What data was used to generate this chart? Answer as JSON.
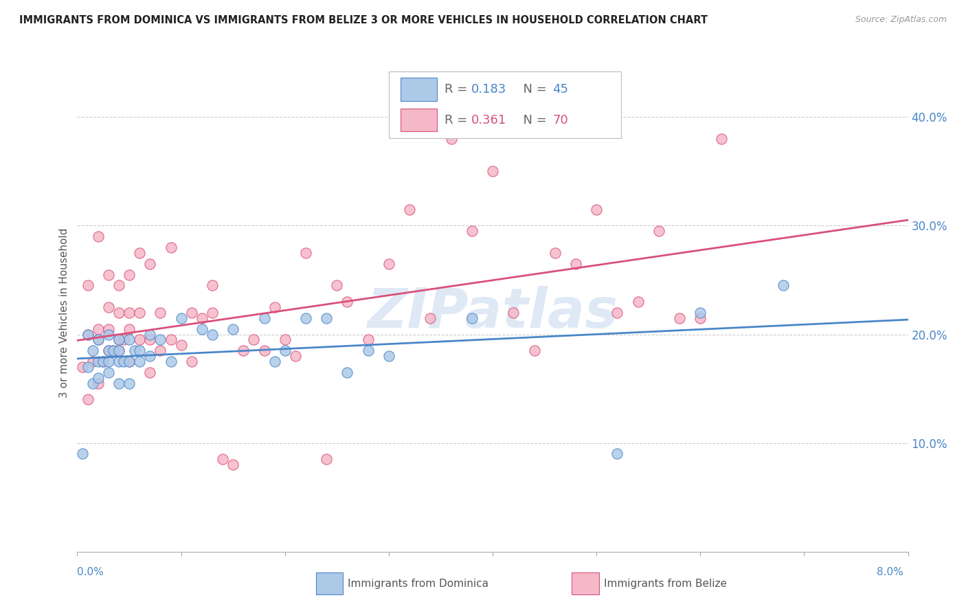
{
  "title": "IMMIGRANTS FROM DOMINICA VS IMMIGRANTS FROM BELIZE 3 OR MORE VEHICLES IN HOUSEHOLD CORRELATION CHART",
  "source": "Source: ZipAtlas.com",
  "ylabel": "3 or more Vehicles in Household",
  "ylabel_right_ticks": [
    "10.0%",
    "20.0%",
    "30.0%",
    "40.0%"
  ],
  "ylabel_right_vals": [
    0.1,
    0.2,
    0.3,
    0.4
  ],
  "x_min": 0.0,
  "x_max": 0.08,
  "y_min": 0.0,
  "y_max": 0.44,
  "dominica_color": "#adc9e8",
  "belize_color": "#f5b8c8",
  "dominica_line_color": "#4a86c8",
  "belize_line_color": "#d9507a",
  "watermark": "ZIPatlas",
  "dominica_x": [
    0.0005,
    0.001,
    0.001,
    0.0015,
    0.0015,
    0.002,
    0.002,
    0.002,
    0.0025,
    0.003,
    0.003,
    0.003,
    0.003,
    0.0035,
    0.004,
    0.004,
    0.004,
    0.004,
    0.0045,
    0.005,
    0.005,
    0.005,
    0.0055,
    0.006,
    0.006,
    0.007,
    0.007,
    0.008,
    0.009,
    0.01,
    0.012,
    0.013,
    0.015,
    0.018,
    0.019,
    0.02,
    0.022,
    0.024,
    0.026,
    0.028,
    0.03,
    0.038,
    0.052,
    0.06,
    0.068
  ],
  "dominica_y": [
    0.09,
    0.17,
    0.2,
    0.155,
    0.185,
    0.16,
    0.175,
    0.195,
    0.175,
    0.175,
    0.165,
    0.185,
    0.2,
    0.185,
    0.155,
    0.175,
    0.185,
    0.195,
    0.175,
    0.155,
    0.175,
    0.195,
    0.185,
    0.175,
    0.185,
    0.18,
    0.2,
    0.195,
    0.175,
    0.215,
    0.205,
    0.2,
    0.205,
    0.215,
    0.175,
    0.185,
    0.215,
    0.215,
    0.165,
    0.185,
    0.18,
    0.215,
    0.09,
    0.22,
    0.245
  ],
  "belize_x": [
    0.0005,
    0.001,
    0.001,
    0.001,
    0.0015,
    0.002,
    0.002,
    0.002,
    0.002,
    0.0025,
    0.003,
    0.003,
    0.003,
    0.003,
    0.0035,
    0.004,
    0.004,
    0.004,
    0.004,
    0.0045,
    0.005,
    0.005,
    0.005,
    0.005,
    0.006,
    0.006,
    0.006,
    0.007,
    0.007,
    0.007,
    0.008,
    0.008,
    0.009,
    0.009,
    0.01,
    0.011,
    0.011,
    0.012,
    0.013,
    0.013,
    0.014,
    0.015,
    0.016,
    0.017,
    0.018,
    0.019,
    0.02,
    0.021,
    0.022,
    0.024,
    0.025,
    0.026,
    0.028,
    0.03,
    0.032,
    0.034,
    0.036,
    0.038,
    0.04,
    0.042,
    0.044,
    0.046,
    0.048,
    0.05,
    0.052,
    0.054,
    0.056,
    0.058,
    0.06,
    0.062
  ],
  "belize_y": [
    0.17,
    0.14,
    0.2,
    0.245,
    0.175,
    0.155,
    0.195,
    0.205,
    0.29,
    0.175,
    0.185,
    0.205,
    0.225,
    0.255,
    0.185,
    0.185,
    0.195,
    0.22,
    0.245,
    0.195,
    0.175,
    0.205,
    0.22,
    0.255,
    0.195,
    0.22,
    0.275,
    0.165,
    0.195,
    0.265,
    0.185,
    0.22,
    0.195,
    0.28,
    0.19,
    0.175,
    0.22,
    0.215,
    0.22,
    0.245,
    0.085,
    0.08,
    0.185,
    0.195,
    0.185,
    0.225,
    0.195,
    0.18,
    0.275,
    0.085,
    0.245,
    0.23,
    0.195,
    0.265,
    0.315,
    0.215,
    0.38,
    0.295,
    0.35,
    0.22,
    0.185,
    0.275,
    0.265,
    0.315,
    0.22,
    0.23,
    0.295,
    0.215,
    0.215,
    0.38
  ]
}
